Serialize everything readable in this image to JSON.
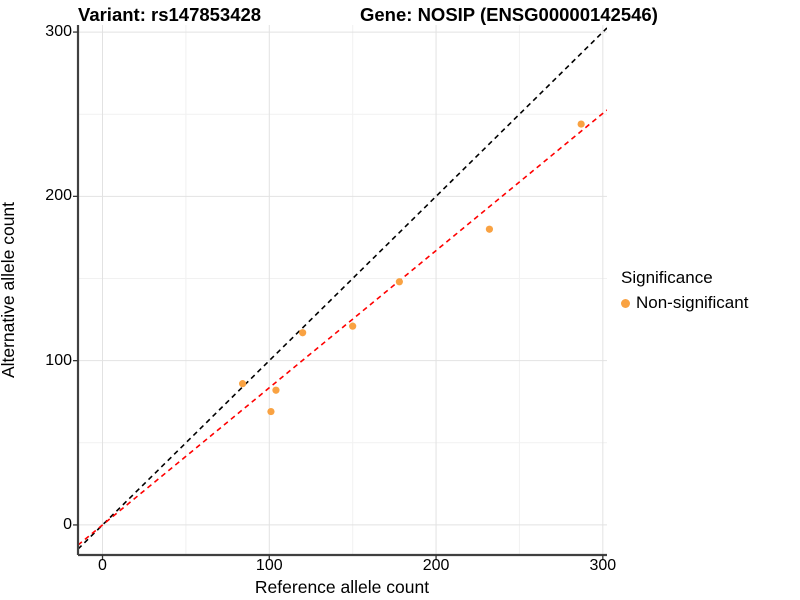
{
  "chart_data": {
    "type": "scatter",
    "titles": {
      "variant": "Variant: rs147853428",
      "gene": "Gene: NOSIP (ENSG00000142546)"
    },
    "xlabel": "Reference allele count",
    "ylabel": "Alternative allele count",
    "xlim": [
      -14.7,
      302.5
    ],
    "ylim": [
      -18.3,
      304.3
    ],
    "xticks": [
      0,
      100,
      200,
      300
    ],
    "yticks": [
      0,
      100,
      200,
      300
    ],
    "x_minor_ticks": [
      50,
      150,
      250
    ],
    "y_minor_ticks": [
      50,
      150,
      250
    ],
    "grid": "major and minor, light gray on white",
    "legend": {
      "title": "Significance",
      "position": "right",
      "items": [
        {
          "label": "Non-significant",
          "color": "#F9A242"
        }
      ]
    },
    "series": [
      {
        "name": "Non-significant",
        "color": "#F9A242",
        "points": [
          {
            "x": 84,
            "y": 86
          },
          {
            "x": 101,
            "y": 69
          },
          {
            "x": 104,
            "y": 82
          },
          {
            "x": 120,
            "y": 117
          },
          {
            "x": 150,
            "y": 121
          },
          {
            "x": 178,
            "y": 148
          },
          {
            "x": 232,
            "y": 180
          },
          {
            "x": 287,
            "y": 244
          }
        ]
      }
    ],
    "lines": [
      {
        "name": "identity-line",
        "slope": 1,
        "intercept": 0,
        "color": "#000000",
        "style": "dashed"
      },
      {
        "name": "fit-line",
        "slope": 0.835,
        "intercept": 0,
        "color": "#FF0000",
        "style": "dashed"
      }
    ]
  },
  "colors": {
    "background": "#FFFFFF",
    "point": "#F9A242",
    "identity_line": "#000000",
    "fit_line": "#FF0000",
    "grid_major": "#E2E2E2",
    "grid_minor": "#F1F1F1",
    "axis_line": "#404040",
    "tick": "#333333",
    "text": "#000000"
  }
}
